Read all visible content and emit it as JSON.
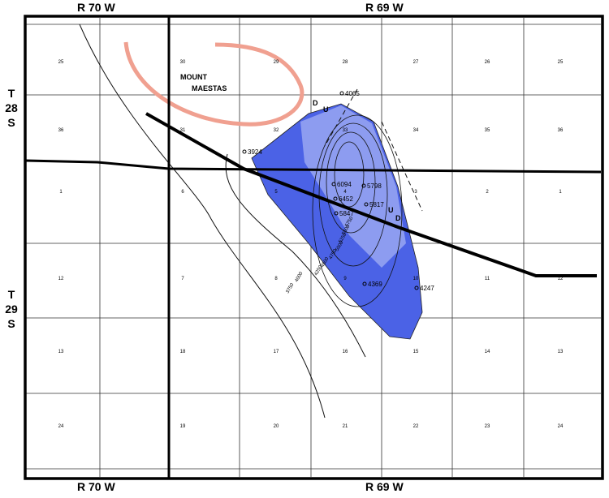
{
  "ranges": {
    "top_left": "R 70 W",
    "top_right": "R 69 W",
    "bottom_left": "R 70 W",
    "bottom_right": "R 69 W"
  },
  "townships": {
    "upper": [
      "T",
      "28",
      "S"
    ],
    "lower": [
      "T",
      "29",
      "S"
    ]
  },
  "feature_label": [
    "MOUNT",
    "MAESTAS"
  ],
  "fault_markers": [
    "D",
    "U",
    "U",
    "D"
  ],
  "sections": [
    [
      "25",
      "30",
      "29",
      "28",
      "27",
      "26",
      "25"
    ],
    [
      "36",
      "31",
      "32",
      "33",
      "34",
      "35",
      "36"
    ],
    [
      "1",
      "6",
      "5",
      "4",
      "3",
      "2",
      "1"
    ],
    [
      "12",
      "7",
      "8",
      "9",
      "10",
      "11",
      "12"
    ],
    [
      "13",
      "18",
      "17",
      "16",
      "15",
      "14",
      "13"
    ],
    [
      "24",
      "19",
      "20",
      "21",
      "22",
      "23",
      "24"
    ]
  ],
  "wells": [
    "4065",
    "3924",
    "6094",
    "5798",
    "6452",
    "5817",
    "5847",
    "4369",
    "4247"
  ],
  "contours": [
    "5750",
    "5500",
    "5250",
    "5000",
    "4750",
    "4500",
    "4250",
    "4000",
    "3750"
  ]
}
